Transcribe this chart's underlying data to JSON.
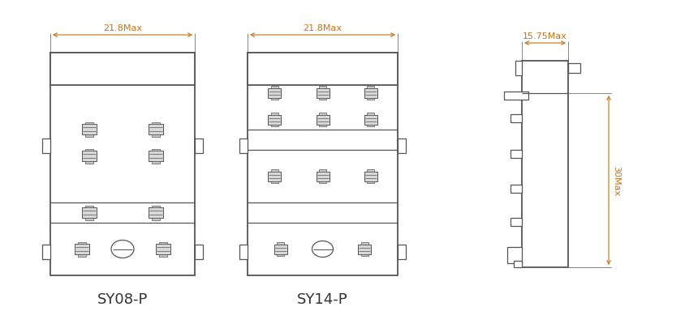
{
  "bg_color": "#ffffff",
  "line_color": "#555555",
  "dim_color": "#c87010",
  "label_color": "#333333",
  "title_sy08": "SY08-P",
  "title_sy14": "SY14-P",
  "dim_width_sy08": "21.8Max",
  "dim_width_sy14": "21.8Max",
  "dim_width_side": "15.75Max",
  "dim_height_side": "30Max",
  "figsize": [
    8.45,
    4.06
  ],
  "dpi": 100
}
